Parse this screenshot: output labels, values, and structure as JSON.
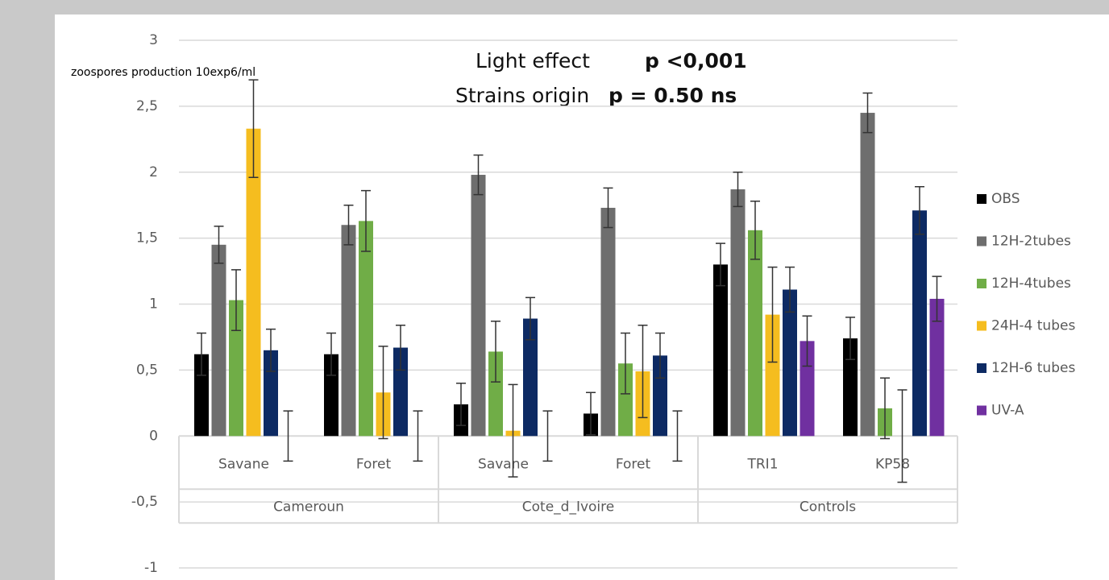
{
  "chart_data": {
    "type": "bar",
    "annotations": [
      "Light effect",
      "p <0,001",
      "Strains origin",
      "p = 0.50  ns"
    ],
    "y_label": "zoospores production 10exp6/ml",
    "categories": [
      "Savane",
      "Foret",
      "Savane",
      "Foret",
      "TRI1",
      "KP58"
    ],
    "groups": [
      {
        "label": "Cameroun",
        "span": 2
      },
      {
        "label": "Cote_d_Ivoire",
        "span": 2
      },
      {
        "label": "Controls",
        "span": 2
      }
    ],
    "ylim": [
      -1,
      3
    ],
    "yticks": [
      {
        "value": -1,
        "label": "-1"
      },
      {
        "value": -0.5,
        "label": "-0,5"
      },
      0,
      {
        "value": 0.5,
        "label": "0,5"
      },
      1,
      {
        "value": 1.5,
        "label": "1,5"
      },
      2,
      {
        "value": 2.5,
        "label": "2,5"
      },
      3
    ],
    "grid": true,
    "legend": "right",
    "series": [
      {
        "name": "OBS",
        "color": "#000000",
        "values": [
          0.62,
          0.62,
          0.24,
          0.17,
          1.3,
          0.74
        ],
        "errors": [
          0.16,
          0.16,
          0.16,
          0.16,
          0.16,
          0.16
        ]
      },
      {
        "name": "12H-2tubes",
        "color": "#6e6e6e",
        "values": [
          1.45,
          1.6,
          1.98,
          1.73,
          1.87,
          2.45
        ],
        "errors": [
          0.14,
          0.15,
          0.15,
          0.15,
          0.13,
          0.15
        ]
      },
      {
        "name": "12H-4tubes",
        "color": "#70ad47",
        "values": [
          1.03,
          1.63,
          0.64,
          0.55,
          1.56,
          0.21
        ],
        "errors": [
          0.23,
          0.23,
          0.23,
          0.23,
          0.22,
          0.23
        ]
      },
      {
        "name": "24H-4 tubes",
        "color": "#f5bd1f",
        "values": [
          2.33,
          0.33,
          0.04,
          0.49,
          0.92,
          0
        ],
        "errors": [
          0.37,
          0.35,
          0.35,
          0.35,
          0.36,
          0.35
        ]
      },
      {
        "name": "12H-6 tubes",
        "color": "#0d2a63",
        "values": [
          0.65,
          0.67,
          0.89,
          0.61,
          1.11,
          1.71
        ],
        "errors": [
          0.16,
          0.17,
          0.16,
          0.17,
          0.17,
          0.18
        ]
      },
      {
        "name": "UV-A",
        "color": "#7030a0",
        "values": [
          0,
          0,
          0,
          0,
          0.72,
          1.04
        ],
        "errors": [
          0.19,
          0.19,
          0.19,
          0.19,
          0.19,
          0.17
        ]
      }
    ]
  }
}
